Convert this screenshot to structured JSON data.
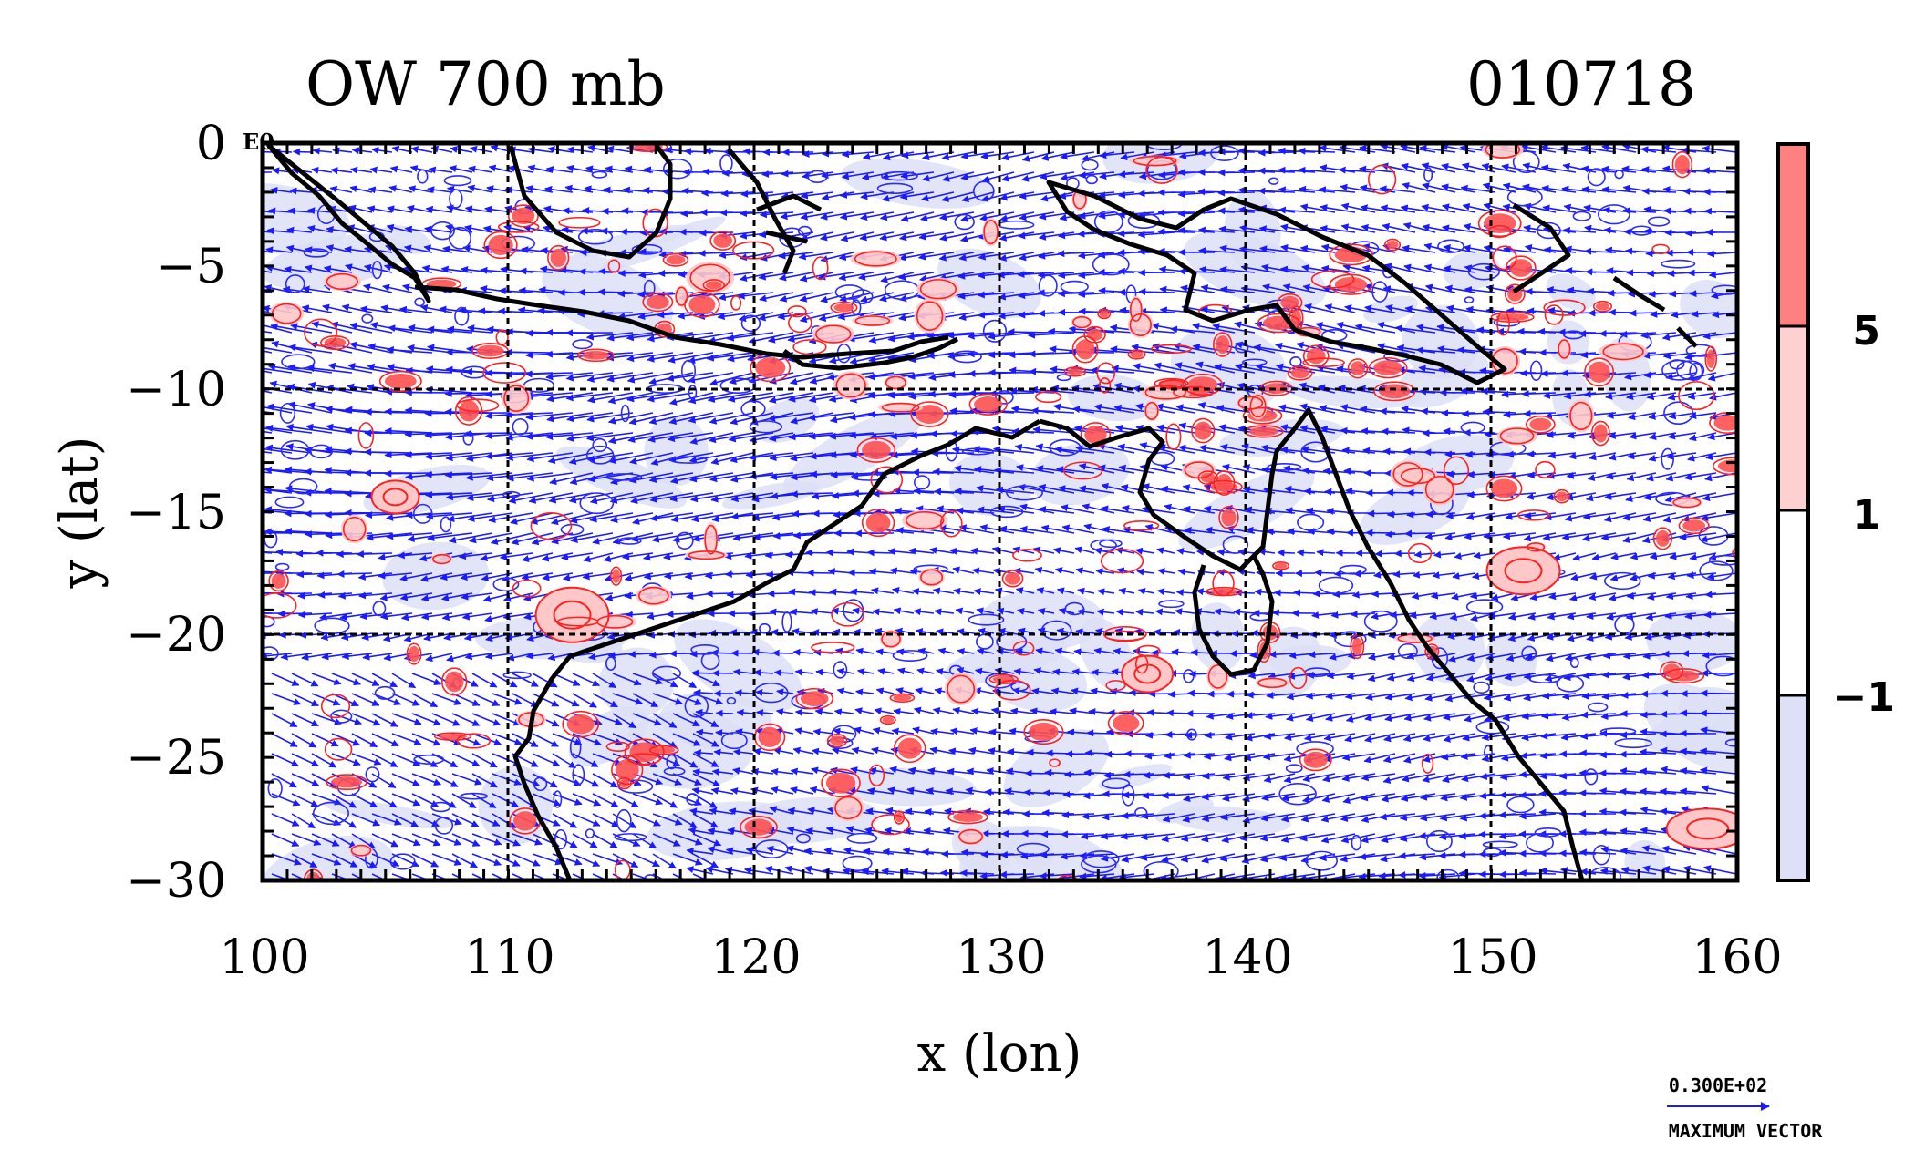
{
  "title_left": "OW 700 mb",
  "title_right": "010718",
  "corner_label": "E0",
  "axes": {
    "xlabel": "x (lon)",
    "ylabel": "y (lat)",
    "xlim": [
      100,
      160
    ],
    "ylim": [
      -30,
      0
    ],
    "x_ticks": [
      "100",
      "110",
      "120",
      "130",
      "140",
      "150",
      "160"
    ],
    "y_ticks": [
      "0",
      "−5",
      "−10",
      "−15",
      "−20",
      "−25",
      "−30"
    ],
    "grid": true
  },
  "colorbar": {
    "labels": [
      "5",
      "1",
      "−1"
    ],
    "colors": [
      "#ff8080",
      "#ffd0d0",
      "#ffffff",
      "#dde0f6"
    ]
  },
  "vector_legend": {
    "value": "0.300E+02",
    "caption": "MAXIMUM VECTOR",
    "color": "#0000ff"
  },
  "colors": {
    "vector": "#1a1aff",
    "positive_contour": "#ff2020",
    "negative_contour": "#2a2aff",
    "coast": "#000000"
  }
}
